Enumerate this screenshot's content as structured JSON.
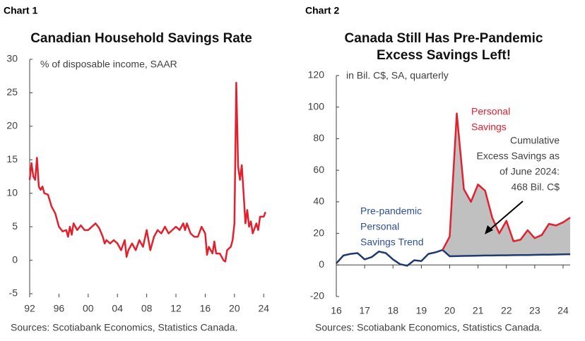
{
  "chart_data": [
    {
      "type": "line",
      "chart_label": "Chart 1",
      "title": [
        "Canadian Household Savings Rate"
      ],
      "subtitle": "% of disposable income, SAAR",
      "source": "Sources: Scotiabank Economics, Statistics Canada.",
      "x": [
        1992,
        1992.25,
        1992.5,
        1992.75,
        1993,
        1993.25,
        1993.5,
        1993.75,
        1994,
        1994.5,
        1995,
        1995.5,
        1996,
        1996.5,
        1997,
        1997.25,
        1997.5,
        1997.75,
        1998,
        1998.5,
        1999,
        1999.5,
        2000,
        2000.5,
        2001,
        2001.5,
        2002,
        2002.25,
        2002.5,
        2003,
        2003.5,
        2004,
        2004.5,
        2005,
        2005.25,
        2005.5,
        2006,
        2006.5,
        2007,
        2007.5,
        2008,
        2008.5,
        2009,
        2009.5,
        2010,
        2010.5,
        2011,
        2011.5,
        2012,
        2012.5,
        2013,
        2013.25,
        2013.5,
        2014,
        2014.5,
        2015,
        2015.5,
        2016,
        2016.25,
        2016.5,
        2017,
        2017.25,
        2017.5,
        2018,
        2018.5,
        2018.75,
        2019,
        2019.5,
        2019.75,
        2020,
        2020.25,
        2020.5,
        2020.75,
        2021,
        2021.25,
        2021.5,
        2021.75,
        2022,
        2022.25,
        2022.5,
        2023,
        2023.25,
        2023.5,
        2024,
        2024.25
      ],
      "series": [
        {
          "name": "Savings rate",
          "color": "#e3202d",
          "values": [
            12,
            14.5,
            12.5,
            12,
            15.3,
            11,
            10.5,
            11,
            10,
            9.8,
            8,
            7,
            5,
            4.3,
            4.5,
            3.5,
            5,
            3.8,
            5.5,
            4.5,
            5.2,
            4.5,
            4.5,
            5,
            5.5,
            4.8,
            3.5,
            2.5,
            3,
            2.5,
            3,
            2.5,
            1.5,
            3,
            0.5,
            1.5,
            2.5,
            1.5,
            3,
            2,
            4.5,
            1.5,
            3.5,
            4.5,
            4,
            5,
            4,
            4.5,
            5,
            4.5,
            5.5,
            4.5,
            5.5,
            4,
            3.5,
            3.5,
            5,
            4,
            0.8,
            2,
            1,
            2.8,
            1,
            1,
            0,
            -0.2,
            1.5,
            2,
            3,
            5.5,
            26.5,
            14,
            12,
            14.2,
            10,
            5.5,
            7.5,
            5,
            5.8,
            4,
            5.5,
            4.5,
            6.5,
            6.5,
            7.2
          ]
        }
      ],
      "xlim": [
        1992,
        2024.75
      ],
      "ylim": [
        -5,
        30
      ],
      "xticks": [
        {
          "value": 1992,
          "label": "92"
        },
        {
          "value": 1996,
          "label": "96"
        },
        {
          "value": 2000,
          "label": "00"
        },
        {
          "value": 2004,
          "label": "04"
        },
        {
          "value": 2008,
          "label": "08"
        },
        {
          "value": 2012,
          "label": "12"
        },
        {
          "value": 2016,
          "label": "16"
        },
        {
          "value": 2020,
          "label": "20"
        },
        {
          "value": 2024,
          "label": "24"
        }
      ],
      "yticks": [
        -5,
        0,
        5,
        10,
        15,
        20,
        25,
        30
      ]
    },
    {
      "type": "line",
      "chart_label": "Chart 2",
      "title": [
        "Canada Still Has Pre-Pandemic",
        "Excess Savings Left!"
      ],
      "subtitle": "in Bil. C$, SA, quarterly",
      "source": "Sources: Scotiabank Economics, Statistics Canada.",
      "x": [
        2016,
        2016.25,
        2016.5,
        2016.75,
        2017,
        2017.25,
        2017.5,
        2017.75,
        2018,
        2018.25,
        2018.5,
        2018.75,
        2019,
        2019.25,
        2019.5,
        2019.75,
        2020,
        2020.25,
        2020.5,
        2020.75,
        2021,
        2021.25,
        2021.5,
        2021.75,
        2022,
        2022.25,
        2022.5,
        2022.75,
        2023,
        2023.25,
        2023.5,
        2023.75,
        2024,
        2024.25
      ],
      "series": [
        {
          "name": "Pre-pandemic Personal Savings Trend",
          "color": "#1f3a6e",
          "values": [
            1,
            6,
            7,
            7.5,
            3.5,
            5,
            8.5,
            7.5,
            3.5,
            0.5,
            -0.5,
            3,
            2.5,
            7,
            8,
            9.5,
            5.5,
            5.6,
            5.7,
            5.8,
            5.9,
            6,
            6,
            6.1,
            6.1,
            6.2,
            6.3,
            6.3,
            6.4,
            6.5,
            6.5,
            6.6,
            6.7,
            6.8
          ]
        },
        {
          "name": "Personal Savings",
          "color": "#e3202d",
          "values": [
            null,
            null,
            null,
            null,
            null,
            null,
            null,
            null,
            null,
            null,
            null,
            null,
            null,
            null,
            null,
            9.5,
            18,
            96,
            48,
            40,
            51,
            47,
            30,
            20,
            28,
            15,
            16,
            22,
            17,
            19,
            26,
            25,
            27,
            30
          ]
        }
      ],
      "fill_color": "#c0c0c0",
      "annotations": [
        {
          "lines": [
            "Personal",
            "Savings"
          ],
          "color": "#e3202d"
        },
        {
          "lines": [
            "Cumulative",
            "Excess Savings as",
            "of June 2024:",
            "468 Bil. C$"
          ],
          "color": "#404040"
        },
        {
          "lines": [
            "Pre-pandemic",
            "Personal",
            "Savings Trend"
          ],
          "color": "#2e4f96"
        }
      ],
      "xlim": [
        2016,
        2024.25
      ],
      "ylim": [
        -20,
        120
      ],
      "xticks": [
        {
          "value": 2016,
          "label": "16"
        },
        {
          "value": 2017,
          "label": "17"
        },
        {
          "value": 2018,
          "label": "18"
        },
        {
          "value": 2019,
          "label": "19"
        },
        {
          "value": 2020,
          "label": "20"
        },
        {
          "value": 2021,
          "label": "21"
        },
        {
          "value": 2022,
          "label": "22"
        },
        {
          "value": 2023,
          "label": "23"
        },
        {
          "value": 2024,
          "label": "24"
        }
      ],
      "yticks": [
        -20,
        0,
        20,
        40,
        60,
        80,
        100,
        120
      ]
    }
  ]
}
